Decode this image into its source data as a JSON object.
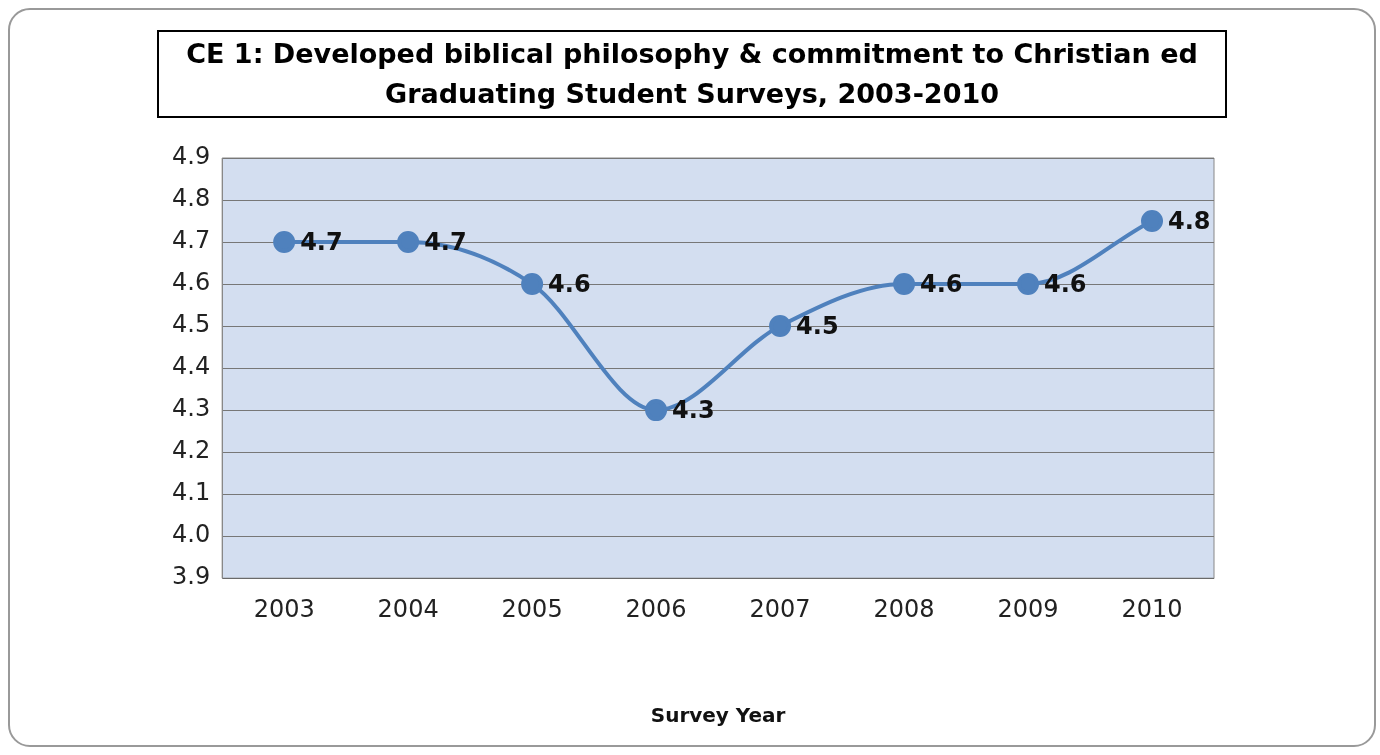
{
  "chart_data": {
    "type": "line",
    "title": "CE 1: Developed biblical philosophy & commitment to Christian ed",
    "subtitle": "Graduating Student Surveys, 2003-2010",
    "xlabel": "Survey Year",
    "categories": [
      "2003",
      "2004",
      "2005",
      "2006",
      "2007",
      "2008",
      "2009",
      "2010"
    ],
    "series": [
      {
        "color": "#4f81bd",
        "values": [
          4.7,
          4.7,
          4.6,
          4.3,
          4.5,
          4.6,
          4.6,
          4.75
        ],
        "value_labels": [
          "4.7",
          "4.7",
          "4.6",
          "4.3",
          "4.5",
          "4.6",
          "4.6",
          "4.8"
        ]
      }
    ],
    "ylim": [
      3.9,
      4.9
    ],
    "yticks": [
      3.9,
      {
        "value": 4,
        "label": "4.0"
      },
      4.1,
      4.2,
      4.3,
      4.4,
      4.5,
      4.6,
      4.7,
      4.8,
      4.9
    ],
    "grid": "y",
    "legend": false,
    "marker": "circle",
    "line_style": "solid"
  }
}
